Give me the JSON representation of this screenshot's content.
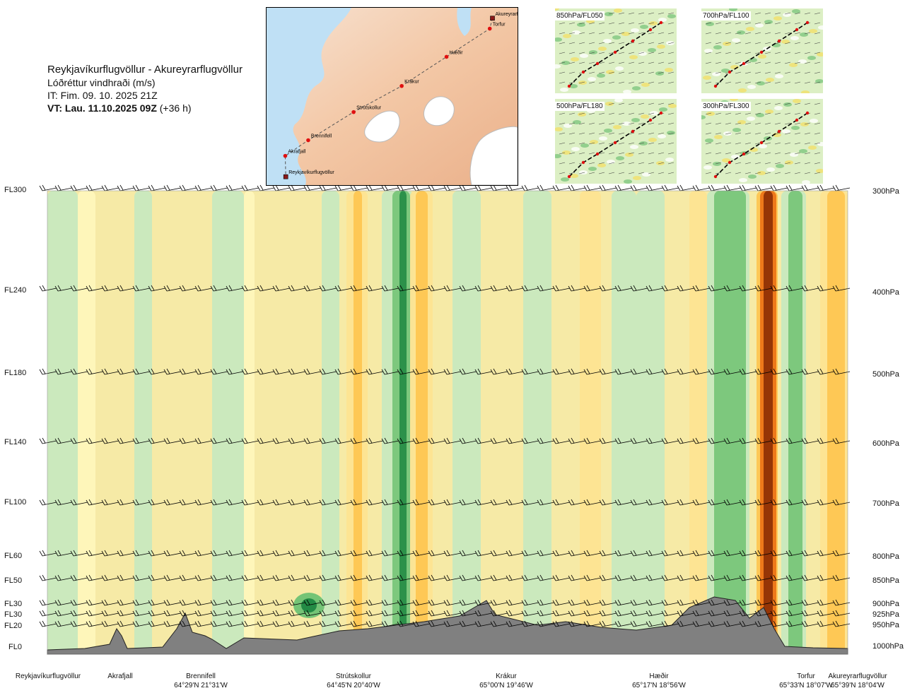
{
  "header": {
    "title": "Reykjavíkurflugvöllur - Akureyrarflugvöllur",
    "subtitle": "Lóðréttur vindhraði (m/s)",
    "it": "IT: Fim. 09. 10. 2025 21Z",
    "vt_bold": "VT: Lau. 11.10.2025 09Z",
    "vt_rest": " (+36 h)"
  },
  "map": {
    "places": [
      {
        "name": "Akureyrarflugvöllur",
        "lon": -18.07,
        "lat": 65.65
      },
      {
        "name": "Torfur",
        "lon": -18.12,
        "lat": 65.55
      },
      {
        "name": "Hæðir",
        "lon": -18.93,
        "lat": 65.28
      },
      {
        "name": "Krákur",
        "lon": -19.77,
        "lat": 65.0
      },
      {
        "name": "Strútskollur",
        "lon": -20.67,
        "lat": 64.75
      },
      {
        "name": "Brennifell",
        "lon": -21.52,
        "lat": 64.48
      },
      {
        "name": "Akrafjall",
        "lon": -21.95,
        "lat": 64.33
      },
      {
        "name": "Reykjavíkurflugvöllur",
        "lon": -21.94,
        "lat": 64.13
      }
    ]
  },
  "insets": [
    {
      "label": "850hPa/FL050"
    },
    {
      "label": "700hPa/FL100"
    },
    {
      "label": "500hPa/FL180"
    },
    {
      "label": "300hPa/FL300"
    }
  ],
  "levels": [
    {
      "fl": "FL300",
      "hpa": "300hPa"
    },
    {
      "fl": "FL240",
      "hpa": "400hPa"
    },
    {
      "fl": "FL180",
      "hpa": "500hPa"
    },
    {
      "fl": "FL140",
      "hpa": "600hPa"
    },
    {
      "fl": "FL100",
      "hpa": "700hPa"
    },
    {
      "fl": "FL60",
      "hpa": "800hPa"
    },
    {
      "fl": "FL50",
      "hpa": "850hPa"
    },
    {
      "fl": "FL30",
      "hpa": "900hPa"
    },
    {
      "fl": "FL30",
      "hpa": "925hPa"
    },
    {
      "fl": "FL20",
      "hpa": "950hPa"
    },
    {
      "fl": "FL0",
      "hpa": "1000hPa"
    }
  ],
  "locations": [
    {
      "name": "Reykjavíkurflugvöllur",
      "coord": ""
    },
    {
      "name": "Akrafjall",
      "coord": ""
    },
    {
      "name": "Brennifell",
      "coord": "64°29'N 21°31'W"
    },
    {
      "name": "Strútskollur",
      "coord": "64°45'N 20°40'W"
    },
    {
      "name": "Krákur",
      "coord": "65°00'N 19°46'W"
    },
    {
      "name": "Hæðir",
      "coord": "65°17'N 18°56'W"
    },
    {
      "name": "Torfur",
      "coord": "65°33'N 18°07'W"
    },
    {
      "name": "Akureyrarflugvöllur",
      "coord": "65°39'N 18°04'W"
    }
  ],
  "chart_data": {
    "type": "heatmap",
    "x_category": "route position",
    "y_category": "pressure level",
    "y_levels_hpa": [
      300,
      400,
      500,
      600,
      700,
      800,
      850,
      900,
      925,
      950,
      1000
    ],
    "colors": {
      "strong_down": "#238b45",
      "down": "#74c476",
      "weak_down": "#c7e9c0",
      "weak_up": "#fff7bc",
      "up": "#fee391",
      "strong_up": "#fec44f",
      "very_strong_up": "#ec7014",
      "extreme_up": "#8c2d04",
      "terrain": "#808080"
    }
  }
}
